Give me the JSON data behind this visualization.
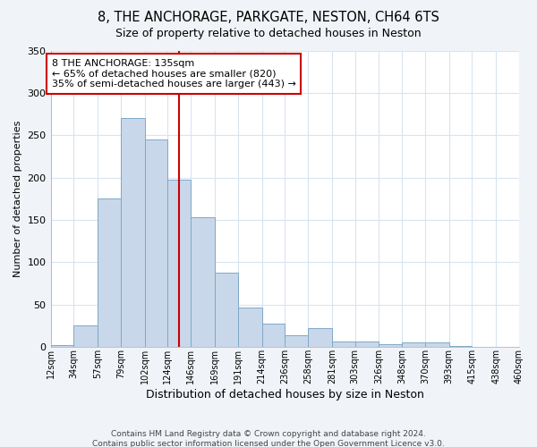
{
  "title": "8, THE ANCHORAGE, PARKGATE, NESTON, CH64 6TS",
  "subtitle": "Size of property relative to detached houses in Neston",
  "xlabel": "Distribution of detached houses by size in Neston",
  "ylabel": "Number of detached properties",
  "bar_color": "#c8d8ea",
  "bar_edge_color": "#7fa8c8",
  "plot_bg_color": "#ffffff",
  "fig_bg_color": "#f0f4f8",
  "grid_color": "#d8e4f0",
  "bin_labels": [
    "12sqm",
    "34sqm",
    "57sqm",
    "79sqm",
    "102sqm",
    "124sqm",
    "146sqm",
    "169sqm",
    "191sqm",
    "214sqm",
    "236sqm",
    "258sqm",
    "281sqm",
    "303sqm",
    "326sqm",
    "348sqm",
    "370sqm",
    "393sqm",
    "415sqm",
    "438sqm",
    "460sqm"
  ],
  "bar_heights": [
    2,
    25,
    175,
    270,
    245,
    198,
    153,
    88,
    47,
    28,
    14,
    22,
    6,
    7,
    3,
    5,
    5,
    1,
    0,
    0
  ],
  "bin_edges": [
    12,
    34,
    57,
    79,
    102,
    124,
    146,
    169,
    191,
    214,
    236,
    258,
    281,
    303,
    326,
    348,
    370,
    393,
    415,
    438,
    460
  ],
  "vline_x": 135,
  "vline_color": "#cc0000",
  "ylim": [
    0,
    350
  ],
  "yticks": [
    0,
    50,
    100,
    150,
    200,
    250,
    300,
    350
  ],
  "annotation_text": "8 THE ANCHORAGE: 135sqm\n← 65% of detached houses are smaller (820)\n35% of semi-detached houses are larger (443) →",
  "annotation_box_edge_color": "#cc0000",
  "footer_line1": "Contains HM Land Registry data © Crown copyright and database right 2024.",
  "footer_line2": "Contains public sector information licensed under the Open Government Licence v3.0."
}
